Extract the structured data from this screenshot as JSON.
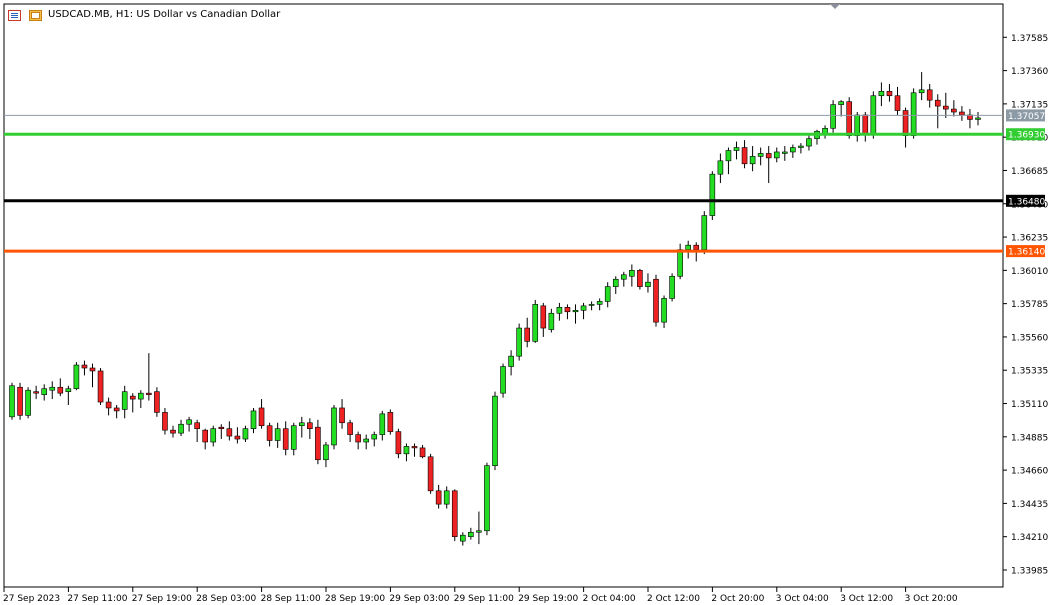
{
  "header": {
    "symbol": "USDCAD.MB, H1:",
    "description": "US Dollar vs Canadian Dollar",
    "icons": [
      "chart-list-icon",
      "chart-window-icon"
    ]
  },
  "colors": {
    "up_body": "#22dd22",
    "down_body": "#ee2222",
    "wick": "#000000",
    "line_green": "#32cd32",
    "line_black": "#000000",
    "line_orange": "#ff5500",
    "current_price_line": "#8c9aa6"
  },
  "chart_data": {
    "type": "candlestick",
    "symbol": "USDCAD.MB",
    "timeframe": "H1",
    "ylim": [
      1.3387,
      1.3781
    ],
    "y_ticks": [
      "1.37585",
      "1.37360",
      "1.37135",
      "1.36910",
      "1.36685",
      "1.36460",
      "1.36235",
      "1.36010",
      "1.35785",
      "1.35560",
      "1.35335",
      "1.35110",
      "1.34885",
      "1.34660",
      "1.34435",
      "1.34210",
      "1.33985"
    ],
    "x_tick_labels": [
      {
        "index": 0,
        "label": "27 Sep 2023"
      },
      {
        "index": 8,
        "label": "27 Sep 11:00"
      },
      {
        "index": 16,
        "label": "27 Sep 19:00"
      },
      {
        "index": 24,
        "label": "28 Sep 03:00"
      },
      {
        "index": 32,
        "label": "28 Sep 11:00"
      },
      {
        "index": 40,
        "label": "28 Sep 19:00"
      },
      {
        "index": 48,
        "label": "29 Sep 03:00"
      },
      {
        "index": 56,
        "label": "29 Sep 11:00"
      },
      {
        "index": 64,
        "label": "29 Sep 19:00"
      },
      {
        "index": 72,
        "label": "2 Oct 04:00"
      },
      {
        "index": 80,
        "label": "2 Oct 12:00"
      },
      {
        "index": 88,
        "label": "2 Oct 20:00"
      },
      {
        "index": 96,
        "label": "3 Oct 04:00"
      },
      {
        "index": 104,
        "label": "3 Oct 12:00"
      },
      {
        "index": 112,
        "label": "3 Oct 20:00"
      }
    ],
    "grid": false,
    "horizontal_lines": [
      {
        "price": 1.3693,
        "label": "1.36930",
        "color": "#32cd32"
      },
      {
        "price": 1.3648,
        "label": "1.36480",
        "color": "#000000"
      },
      {
        "price": 1.3614,
        "label": "1.36140",
        "color": "#ff5500"
      }
    ],
    "current_price": {
      "price": 1.37057,
      "label": "1.37057"
    },
    "candles": [
      [
        1.3502,
        1.3525,
        1.35,
        1.3523
      ],
      [
        1.3522,
        1.3525,
        1.35,
        1.3503
      ],
      [
        1.3503,
        1.3522,
        1.3501,
        1.352
      ],
      [
        1.3519,
        1.3523,
        1.3514,
        1.3518
      ],
      [
        1.3517,
        1.3524,
        1.3513,
        1.3521
      ],
      [
        1.352,
        1.3526,
        1.3514,
        1.3522
      ],
      [
        1.3522,
        1.3528,
        1.3516,
        1.3518
      ],
      [
        1.3519,
        1.3523,
        1.351,
        1.3521
      ],
      [
        1.3521,
        1.3539,
        1.352,
        1.3537
      ],
      [
        1.3537,
        1.354,
        1.353,
        1.3535
      ],
      [
        1.3535,
        1.3538,
        1.3522,
        1.3533
      ],
      [
        1.3533,
        1.3535,
        1.351,
        1.3512
      ],
      [
        1.3512,
        1.3515,
        1.3503,
        1.3508
      ],
      [
        1.3508,
        1.351,
        1.3501,
        1.3506
      ],
      [
        1.3507,
        1.3523,
        1.3501,
        1.3519
      ],
      [
        1.3516,
        1.3518,
        1.3505,
        1.3514
      ],
      [
        1.3514,
        1.352,
        1.3508,
        1.3518
      ],
      [
        1.3518,
        1.3545,
        1.3513,
        1.3517
      ],
      [
        1.3519,
        1.3522,
        1.3502,
        1.3505
      ],
      [
        1.3505,
        1.3508,
        1.349,
        1.3493
      ],
      [
        1.3493,
        1.3496,
        1.3488,
        1.3491
      ],
      [
        1.3491,
        1.35,
        1.3489,
        1.3497
      ],
      [
        1.3497,
        1.3502,
        1.3492,
        1.35
      ],
      [
        1.3498,
        1.35,
        1.3485,
        1.3494
      ],
      [
        1.3493,
        1.3494,
        1.348,
        1.3485
      ],
      [
        1.3485,
        1.3496,
        1.3482,
        1.3494
      ],
      [
        1.3495,
        1.3497,
        1.3487,
        1.3494
      ],
      [
        1.3494,
        1.3499,
        1.3486,
        1.3489
      ],
      [
        1.3489,
        1.3495,
        1.3484,
        1.3487
      ],
      [
        1.3487,
        1.3496,
        1.3485,
        1.3494
      ],
      [
        1.3494,
        1.3508,
        1.3491,
        1.3506
      ],
      [
        1.3508,
        1.3514,
        1.3494,
        1.3496
      ],
      [
        1.3496,
        1.3498,
        1.3482,
        1.3486
      ],
      [
        1.3486,
        1.3498,
        1.3481,
        1.3494
      ],
      [
        1.3494,
        1.3499,
        1.3476,
        1.348
      ],
      [
        1.348,
        1.3498,
        1.3476,
        1.3496
      ],
      [
        1.3496,
        1.3502,
        1.3488,
        1.3498
      ],
      [
        1.3498,
        1.3501,
        1.3487,
        1.3494
      ],
      [
        1.3495,
        1.35,
        1.347,
        1.3473
      ],
      [
        1.3473,
        1.3485,
        1.3468,
        1.3483
      ],
      [
        1.3483,
        1.351,
        1.348,
        1.3508
      ],
      [
        1.3508,
        1.3514,
        1.3494,
        1.3498
      ],
      [
        1.3498,
        1.35,
        1.3485,
        1.349
      ],
      [
        1.349,
        1.3492,
        1.348,
        1.3485
      ],
      [
        1.3485,
        1.349,
        1.348,
        1.3487
      ],
      [
        1.3487,
        1.3492,
        1.3482,
        1.349
      ],
      [
        1.349,
        1.3506,
        1.3486,
        1.3504
      ],
      [
        1.3505,
        1.3507,
        1.349,
        1.3492
      ],
      [
        1.3492,
        1.3494,
        1.3474,
        1.3477
      ],
      [
        1.3477,
        1.3484,
        1.3472,
        1.3482
      ],
      [
        1.3482,
        1.3484,
        1.3475,
        1.3481
      ],
      [
        1.3481,
        1.3483,
        1.3474,
        1.3475
      ],
      [
        1.3475,
        1.3477,
        1.345,
        1.3452
      ],
      [
        1.3452,
        1.3456,
        1.344,
        1.3443
      ],
      [
        1.3443,
        1.3455,
        1.344,
        1.3452
      ],
      [
        1.3452,
        1.3453,
        1.3418,
        1.3421
      ],
      [
        1.3418,
        1.3424,
        1.3415,
        1.3422
      ],
      [
        1.3421,
        1.3427,
        1.3419,
        1.3424
      ],
      [
        1.3424,
        1.3438,
        1.3416,
        1.3425
      ],
      [
        1.3425,
        1.3471,
        1.3422,
        1.3469
      ],
      [
        1.3469,
        1.3519,
        1.3466,
        1.3516
      ],
      [
        1.3518,
        1.3538,
        1.3515,
        1.3536
      ],
      [
        1.3536,
        1.3547,
        1.353,
        1.3543
      ],
      [
        1.3543,
        1.3565,
        1.354,
        1.3562
      ],
      [
        1.3562,
        1.3569,
        1.3549,
        1.3553
      ],
      [
        1.3553,
        1.3581,
        1.3552,
        1.3578
      ],
      [
        1.3577,
        1.3579,
        1.3556,
        1.3562
      ],
      [
        1.3561,
        1.3575,
        1.3559,
        1.3572
      ],
      [
        1.3572,
        1.3579,
        1.3567,
        1.3576
      ],
      [
        1.3576,
        1.3578,
        1.3568,
        1.3573
      ],
      [
        1.3573,
        1.3578,
        1.3565,
        1.3574
      ],
      [
        1.3574,
        1.3579,
        1.3568,
        1.3577
      ],
      [
        1.3578,
        1.358,
        1.3574,
        1.3578
      ],
      [
        1.3578,
        1.3582,
        1.3574,
        1.358
      ],
      [
        1.358,
        1.3593,
        1.3576,
        1.359
      ],
      [
        1.359,
        1.3597,
        1.3585,
        1.3595
      ],
      [
        1.3595,
        1.36,
        1.359,
        1.3598
      ],
      [
        1.3597,
        1.3605,
        1.359,
        1.3601
      ],
      [
        1.3601,
        1.3602,
        1.3588,
        1.359
      ],
      [
        1.359,
        1.3599,
        1.3586,
        1.3593
      ],
      [
        1.3595,
        1.3598,
        1.3563,
        1.3566
      ],
      [
        1.3566,
        1.3584,
        1.3562,
        1.3582
      ],
      [
        1.3582,
        1.3599,
        1.358,
        1.3597
      ],
      [
        1.3597,
        1.3619,
        1.3595,
        1.3615
      ],
      [
        1.3615,
        1.3621,
        1.3609,
        1.3618
      ],
      [
        1.3618,
        1.362,
        1.3607,
        1.3615
      ],
      [
        1.3615,
        1.3641,
        1.3612,
        1.3638
      ],
      [
        1.3638,
        1.3668,
        1.3635,
        1.3666
      ],
      [
        1.3666,
        1.368,
        1.366,
        1.3675
      ],
      [
        1.3675,
        1.3684,
        1.3666,
        1.3682
      ],
      [
        1.3682,
        1.3688,
        1.3676,
        1.3684
      ],
      [
        1.3684,
        1.3689,
        1.367,
        1.3673
      ],
      [
        1.3673,
        1.3685,
        1.3668,
        1.3678
      ],
      [
        1.3678,
        1.3684,
        1.3672,
        1.368
      ],
      [
        1.368,
        1.3685,
        1.366,
        1.3677
      ],
      [
        1.3677,
        1.3684,
        1.3674,
        1.3681
      ],
      [
        1.368,
        1.3685,
        1.3675,
        1.3681
      ],
      [
        1.3681,
        1.3686,
        1.3677,
        1.3684
      ],
      [
        1.3684,
        1.3687,
        1.368,
        1.3685
      ],
      [
        1.3685,
        1.3693,
        1.3682,
        1.369
      ],
      [
        1.369,
        1.3696,
        1.3686,
        1.3695
      ],
      [
        1.3693,
        1.3699,
        1.369,
        1.3697
      ],
      [
        1.3697,
        1.3716,
        1.3694,
        1.3713
      ],
      [
        1.3713,
        1.3716,
        1.3705,
        1.3715
      ],
      [
        1.3715,
        1.3718,
        1.369,
        1.3692
      ],
      [
        1.3692,
        1.3708,
        1.3688,
        1.3706
      ],
      [
        1.3706,
        1.3708,
        1.3688,
        1.3693
      ],
      [
        1.3693,
        1.3722,
        1.369,
        1.3719
      ],
      [
        1.3719,
        1.3728,
        1.3712,
        1.3722
      ],
      [
        1.3722,
        1.3727,
        1.3715,
        1.3719
      ],
      [
        1.3719,
        1.3725,
        1.3706,
        1.3709
      ],
      [
        1.3709,
        1.3711,
        1.3684,
        1.3692
      ],
      [
        1.3692,
        1.3724,
        1.369,
        1.3721
      ],
      [
        1.3721,
        1.3735,
        1.3716,
        1.3723
      ],
      [
        1.3723,
        1.3727,
        1.3711,
        1.3716
      ],
      [
        1.3716,
        1.372,
        1.3697,
        1.3712
      ],
      [
        1.3712,
        1.3721,
        1.3704,
        1.371
      ],
      [
        1.371,
        1.3716,
        1.3705,
        1.3708
      ],
      [
        1.3708,
        1.3712,
        1.3702,
        1.3706
      ],
      [
        1.3706,
        1.371,
        1.3697,
        1.3703
      ],
      [
        1.3703,
        1.3708,
        1.3699,
        1.3704
      ]
    ]
  }
}
